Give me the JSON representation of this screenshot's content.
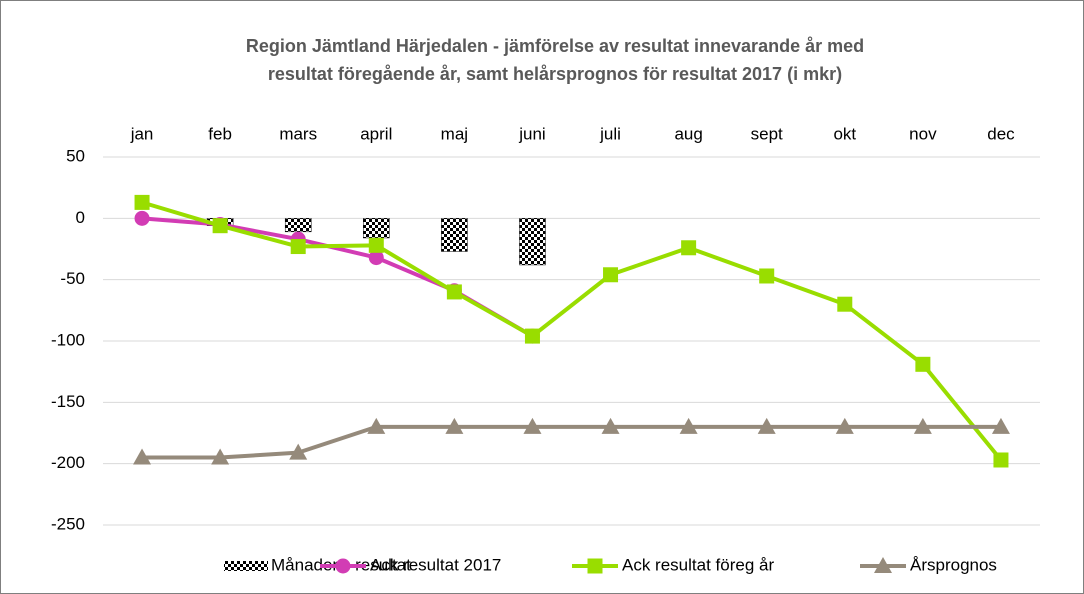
{
  "chart_data": {
    "type": "line",
    "title": [
      "Region Jämtland Härjedalen - jämförelse av resultat innevarande år med",
      "resultat föregående år, samt helårsprognos för resultat 2017 (i mkr)"
    ],
    "categories": [
      "jan",
      "feb",
      "mars",
      "april",
      "maj",
      "juni",
      "juli",
      "aug",
      "sept",
      "okt",
      "nov",
      "dec"
    ],
    "series": [
      {
        "name": "Månadens resultat",
        "type": "bar",
        "color": "#000000",
        "values": [
          0,
          -6,
          -11,
          -16,
          -27,
          -38,
          null,
          null,
          null,
          null,
          null,
          null
        ]
      },
      {
        "name": "Ack resultat 2017",
        "type": "line",
        "marker": "circle",
        "color": "#d23cb4",
        "values": [
          0,
          -5,
          -17,
          -32,
          -59,
          -96,
          null,
          null,
          null,
          null,
          null,
          null
        ]
      },
      {
        "name": "Ack resultat föreg år",
        "type": "line",
        "marker": "square",
        "color": "#99dd00",
        "values": [
          13,
          -6,
          -23,
          -22,
          -60,
          -96,
          -46,
          -24,
          -47,
          -70,
          -119,
          -197
        ]
      },
      {
        "name": "Årsprognos",
        "type": "line",
        "marker": "triangle",
        "color": "#958a7b",
        "values": [
          -195,
          -195,
          -191,
          -170,
          -170,
          -170,
          -170,
          -170,
          -170,
          -170,
          -170,
          -170
        ]
      }
    ],
    "ylim": [
      -250,
      50
    ],
    "yticks": [
      -250,
      -200,
      -150,
      -100,
      -50,
      0,
      50
    ],
    "grid": true,
    "legend": "bottom"
  }
}
